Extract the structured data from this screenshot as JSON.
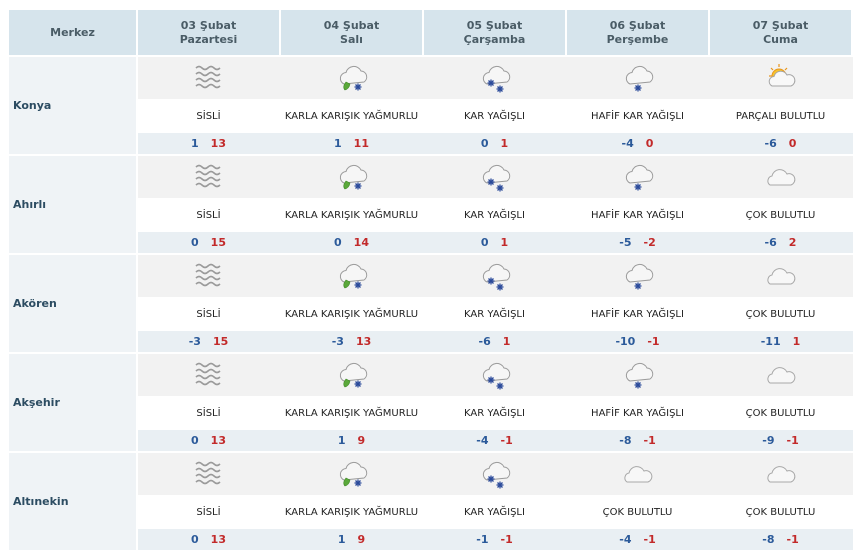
{
  "header": {
    "merkez": "Merkez",
    "days": [
      {
        "date": "03 Şubat",
        "weekday": "Pazartesi"
      },
      {
        "date": "04 Şubat",
        "weekday": "Salı"
      },
      {
        "date": "05 Şubat",
        "weekday": "Çarşamba"
      },
      {
        "date": "06 Şubat",
        "weekday": "Perşembe"
      },
      {
        "date": "07 Şubat",
        "weekday": "Cuma"
      }
    ]
  },
  "cities": [
    {
      "name": "Konya",
      "days": [
        {
          "icon": "fog-icon",
          "desc": "SİSLİ",
          "min": "1",
          "max": "13"
        },
        {
          "icon": "sleet-icon",
          "desc": "KARLA KARIŞIK YAĞMURLU",
          "min": "1",
          "max": "11"
        },
        {
          "icon": "snow-icon",
          "desc": "KAR YAĞIŞLI",
          "min": "0",
          "max": "1"
        },
        {
          "icon": "light-snow-icon",
          "desc": "HAFİF KAR YAĞIŞLI",
          "min": "-4",
          "max": "0"
        },
        {
          "icon": "partly-cloudy-icon",
          "desc": "PARÇALI BULUTLU",
          "min": "-6",
          "max": "0"
        }
      ]
    },
    {
      "name": "Ahırlı",
      "days": [
        {
          "icon": "fog-icon",
          "desc": "SİSLİ",
          "min": "0",
          "max": "15"
        },
        {
          "icon": "sleet-icon",
          "desc": "KARLA KARIŞIK YAĞMURLU",
          "min": "0",
          "max": "14"
        },
        {
          "icon": "snow-icon",
          "desc": "KAR YAĞIŞLI",
          "min": "0",
          "max": "1"
        },
        {
          "icon": "light-snow-icon",
          "desc": "HAFİF KAR YAĞIŞLI",
          "min": "-5",
          "max": "-2"
        },
        {
          "icon": "cloudy-icon",
          "desc": "ÇOK BULUTLU",
          "min": "-6",
          "max": "2"
        }
      ]
    },
    {
      "name": "Akören",
      "days": [
        {
          "icon": "fog-icon",
          "desc": "SİSLİ",
          "min": "-3",
          "max": "15"
        },
        {
          "icon": "sleet-icon",
          "desc": "KARLA KARIŞIK YAĞMURLU",
          "min": "-3",
          "max": "13"
        },
        {
          "icon": "snow-icon",
          "desc": "KAR YAĞIŞLI",
          "min": "-6",
          "max": "1"
        },
        {
          "icon": "light-snow-icon",
          "desc": "HAFİF KAR YAĞIŞLI",
          "min": "-10",
          "max": "-1"
        },
        {
          "icon": "cloudy-icon",
          "desc": "ÇOK BULUTLU",
          "min": "-11",
          "max": "1"
        }
      ]
    },
    {
      "name": "Akşehir",
      "days": [
        {
          "icon": "fog-icon",
          "desc": "SİSLİ",
          "min": "0",
          "max": "13"
        },
        {
          "icon": "sleet-icon",
          "desc": "KARLA KARIŞIK YAĞMURLU",
          "min": "1",
          "max": "9"
        },
        {
          "icon": "snow-icon",
          "desc": "KAR YAĞIŞLI",
          "min": "-4",
          "max": "-1"
        },
        {
          "icon": "light-snow-icon",
          "desc": "HAFİF KAR YAĞIŞLI",
          "min": "-8",
          "max": "-1"
        },
        {
          "icon": "cloudy-icon",
          "desc": "ÇOK BULUTLU",
          "min": "-9",
          "max": "-1"
        }
      ]
    },
    {
      "name": "Altınekin",
      "days": [
        {
          "icon": "fog-icon",
          "desc": "SİSLİ",
          "min": "0",
          "max": "13"
        },
        {
          "icon": "sleet-icon",
          "desc": "KARLA KARIŞIK YAĞMURLU",
          "min": "1",
          "max": "9"
        },
        {
          "icon": "snow-icon",
          "desc": "KAR YAĞIŞLI",
          "min": "-1",
          "max": "-1"
        },
        {
          "icon": "cloudy-icon",
          "desc": "ÇOK BULUTLU",
          "min": "-4",
          "max": "-1"
        },
        {
          "icon": "cloudy-icon",
          "desc": "ÇOK BULUTLU",
          "min": "-8",
          "max": "-1"
        }
      ]
    }
  ]
}
